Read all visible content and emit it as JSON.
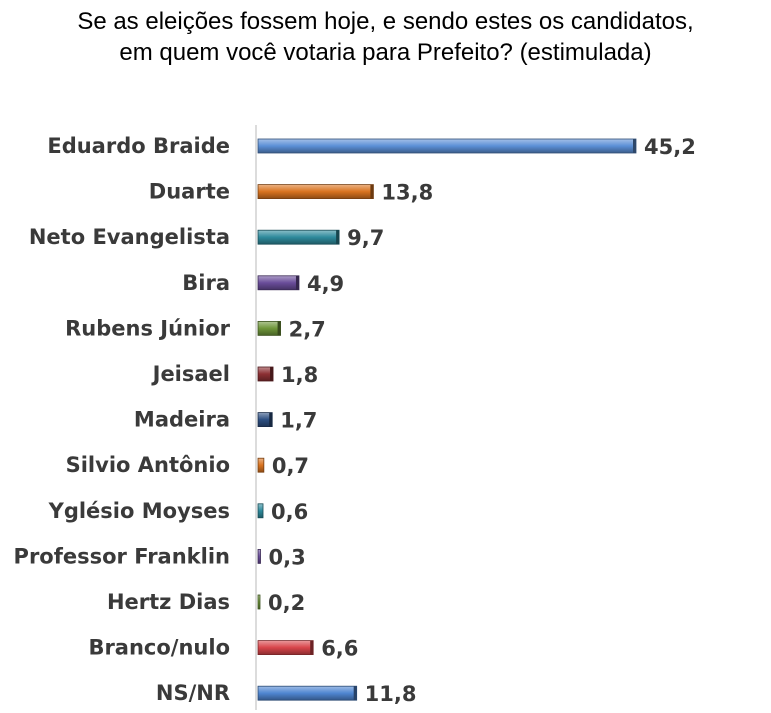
{
  "title_line1": "Se as eleições fossem hoje, e sendo estes os candidatos,",
  "title_line2": "em quem você votaria para Prefeito? (estimulada)",
  "chart_data": {
    "type": "bar",
    "orientation": "horizontal",
    "categories": [
      "Eduardo Braide",
      "Duarte",
      "Neto Evangelista",
      "Bira",
      "Rubens Júnior",
      "Jeisael",
      "Madeira",
      "Silvio Antônio",
      "Yglésio Moyses",
      "Professor Franklin",
      "Hertz Dias",
      "Branco/nulo",
      "NS/NR"
    ],
    "values": [
      45.2,
      13.8,
      9.7,
      4.9,
      2.7,
      1.8,
      1.7,
      0.7,
      0.6,
      0.3,
      0.2,
      6.6,
      11.8
    ],
    "value_labels": [
      "45,2",
      "13,8",
      "9,7",
      "4,9",
      "2,7",
      "1,8",
      "1,7",
      "0,7",
      "0,6",
      "0,3",
      "0,2",
      "6,6",
      "11,8"
    ],
    "colors": [
      "#5b8fd6",
      "#d9731f",
      "#2e8a9c",
      "#6a4d9a",
      "#6f963a",
      "#8c2f33",
      "#2d4f82",
      "#d9731f",
      "#2e8a9c",
      "#6a4d9a",
      "#6f963a",
      "#d8454a",
      "#4f86d1"
    ],
    "xlim": [
      0,
      45.2
    ],
    "grid": false,
    "legend": "none"
  }
}
